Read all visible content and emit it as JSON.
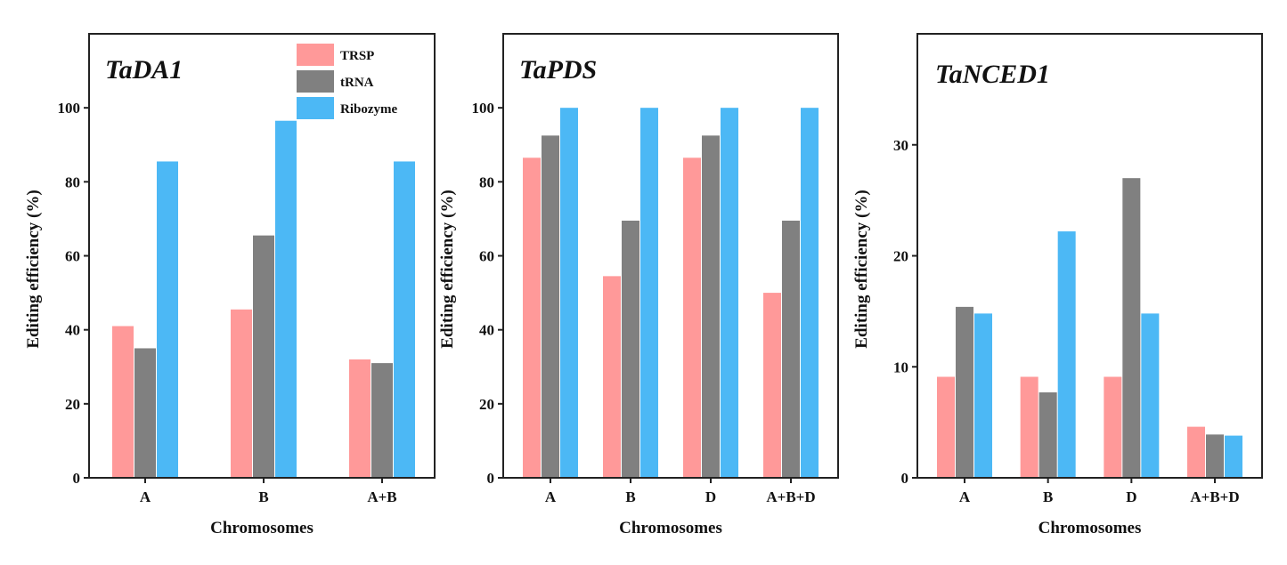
{
  "chart_data": [
    {
      "type": "bar",
      "title": "TaDA1",
      "xlabel": "Chromosomes",
      "ylabel": "Editing efficiency (%)",
      "ylim": [
        0,
        120
      ],
      "yticks": [
        0,
        20,
        40,
        60,
        80,
        100
      ],
      "categories": [
        "A",
        "B",
        "A+B"
      ],
      "legend": {
        "placement": "top-right"
      },
      "grid": false,
      "series": [
        {
          "name": "TRSP",
          "color": "#ff9999",
          "values": [
            41,
            45.5,
            32
          ]
        },
        {
          "name": "tRNA",
          "color": "#808080",
          "values": [
            35,
            65.5,
            31
          ]
        },
        {
          "name": "Ribozyme",
          "color": "#4cb8f5",
          "values": [
            85.5,
            96.5,
            85.5
          ]
        }
      ]
    },
    {
      "type": "bar",
      "title": "TaPDS",
      "xlabel": "Chromosomes",
      "ylabel": "Editing efficiency (%)",
      "ylim": [
        0,
        120
      ],
      "yticks": [
        0,
        20,
        40,
        60,
        80,
        100
      ],
      "categories": [
        "A",
        "B",
        "D",
        "A+B+D"
      ],
      "grid": false,
      "series": [
        {
          "name": "TRSP",
          "color": "#ff9999",
          "values": [
            86.5,
            54.5,
            86.5,
            50
          ]
        },
        {
          "name": "tRNA",
          "color": "#808080",
          "values": [
            92.5,
            69.5,
            92.5,
            69.5
          ]
        },
        {
          "name": "Ribozyme",
          "color": "#4cb8f5",
          "values": [
            100,
            100,
            100,
            100
          ]
        }
      ]
    },
    {
      "type": "bar",
      "title": "TaNCED1",
      "xlabel": "Chromosomes",
      "ylabel": "Editing efficiency (%)",
      "ylim": [
        0,
        40
      ],
      "yticks": [
        0,
        10,
        20,
        30
      ],
      "categories": [
        "A",
        "B",
        "D",
        "A+B+D"
      ],
      "grid": false,
      "series": [
        {
          "name": "TRSP",
          "color": "#ff9999",
          "values": [
            9.1,
            9.1,
            9.1,
            4.6
          ]
        },
        {
          "name": "tRNA",
          "color": "#808080",
          "values": [
            15.4,
            7.7,
            27,
            3.9
          ]
        },
        {
          "name": "Ribozyme",
          "color": "#4cb8f5",
          "values": [
            14.8,
            22.2,
            14.8,
            3.8
          ]
        }
      ]
    }
  ]
}
